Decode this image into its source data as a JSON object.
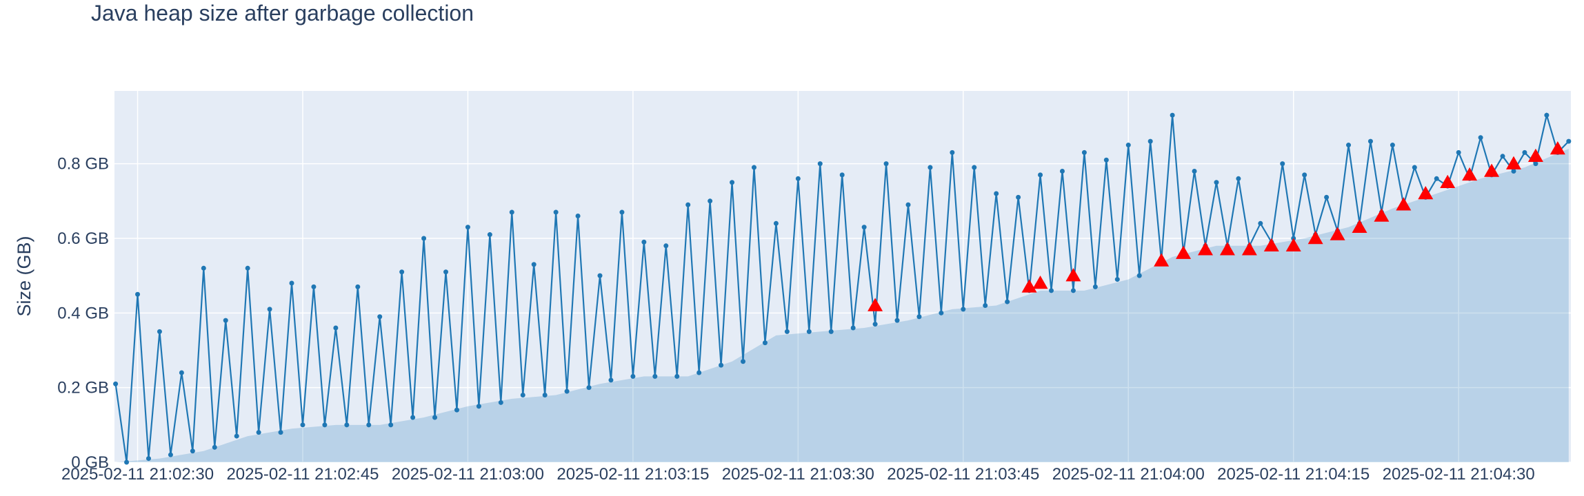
{
  "chart_data": {
    "type": "line",
    "title": "Java heap size after garbage collection",
    "y_label": "Size (GB)",
    "xlim": [
      "2025-02-11 21:02:27.9",
      "2025-02-11 21:04:40.2"
    ],
    "xticks": [
      "2025-02-11 21:02:30",
      "2025-02-11 21:02:45",
      "2025-02-11 21:03:00",
      "2025-02-11 21:03:15",
      "2025-02-11 21:03:30",
      "2025-02-11 21:03:45",
      "2025-02-11 21:04:00",
      "2025-02-11 21:04:15",
      "2025-02-11 21:04:30"
    ],
    "ylim": [
      0,
      0.995
    ],
    "yticks": [
      {
        "value": 0,
        "label": "0 GB"
      },
      {
        "value": 0.2,
        "label": "0.2 GB"
      },
      {
        "value": 0.4,
        "label": "0.4 GB"
      },
      {
        "value": 0.6,
        "label": "0.6 GB"
      },
      {
        "value": 0.8,
        "label": "0.8 GB"
      }
    ],
    "grid": true,
    "series": [
      {
        "kind": "area",
        "color": "#1f77b4",
        "fill": "rgba(31,119,180,0.22)",
        "x": [
          "2025-02-11 21:02:28",
          "2025-02-11 21:02:32",
          "2025-02-11 21:02:36",
          "2025-02-11 21:02:40",
          "2025-02-11 21:02:44",
          "2025-02-11 21:02:48",
          "2025-02-11 21:02:52",
          "2025-02-11 21:02:56",
          "2025-02-11 21:03:00",
          "2025-02-11 21:03:04",
          "2025-02-11 21:03:08",
          "2025-02-11 21:03:12",
          "2025-02-11 21:03:16",
          "2025-02-11 21:03:20",
          "2025-02-11 21:03:24",
          "2025-02-11 21:03:28",
          "2025-02-11 21:03:32",
          "2025-02-11 21:03:36",
          "2025-02-11 21:03:40",
          "2025-02-11 21:03:44",
          "2025-02-11 21:03:48",
          "2025-02-11 21:03:52",
          "2025-02-11 21:03:56",
          "2025-02-11 21:04:00",
          "2025-02-11 21:04:04",
          "2025-02-11 21:04:08",
          "2025-02-11 21:04:12",
          "2025-02-11 21:04:16",
          "2025-02-11 21:04:20",
          "2025-02-11 21:04:24",
          "2025-02-11 21:04:28",
          "2025-02-11 21:04:32",
          "2025-02-11 21:04:36",
          "2025-02-11 21:04:40"
        ],
        "values": [
          0.0,
          0.01,
          0.03,
          0.07,
          0.09,
          0.1,
          0.1,
          0.12,
          0.15,
          0.17,
          0.18,
          0.21,
          0.23,
          0.23,
          0.27,
          0.34,
          0.35,
          0.36,
          0.38,
          0.41,
          0.42,
          0.46,
          0.46,
          0.49,
          0.55,
          0.58,
          0.58,
          0.6,
          0.63,
          0.68,
          0.72,
          0.76,
          0.79,
          0.84
        ]
      },
      {
        "kind": "line",
        "color": "#1f77b4",
        "x": [
          "2025-02-11 21:02:28",
          "2025-02-11 21:02:29",
          "2025-02-11 21:02:30",
          "2025-02-11 21:02:31",
          "2025-02-11 21:02:32",
          "2025-02-11 21:02:33",
          "2025-02-11 21:02:34",
          "2025-02-11 21:02:35",
          "2025-02-11 21:02:36",
          "2025-02-11 21:02:37",
          "2025-02-11 21:02:38",
          "2025-02-11 21:02:39",
          "2025-02-11 21:02:40",
          "2025-02-11 21:02:41",
          "2025-02-11 21:02:42",
          "2025-02-11 21:02:43",
          "2025-02-11 21:02:44",
          "2025-02-11 21:02:45",
          "2025-02-11 21:02:46",
          "2025-02-11 21:02:47",
          "2025-02-11 21:02:48",
          "2025-02-11 21:02:49",
          "2025-02-11 21:02:50",
          "2025-02-11 21:02:51",
          "2025-02-11 21:02:52",
          "2025-02-11 21:02:53",
          "2025-02-11 21:02:54",
          "2025-02-11 21:02:55",
          "2025-02-11 21:02:56",
          "2025-02-11 21:02:57",
          "2025-02-11 21:02:58",
          "2025-02-11 21:02:59",
          "2025-02-11 21:03:00",
          "2025-02-11 21:03:01",
          "2025-02-11 21:03:02",
          "2025-02-11 21:03:03",
          "2025-02-11 21:03:04",
          "2025-02-11 21:03:05",
          "2025-02-11 21:03:06",
          "2025-02-11 21:03:07",
          "2025-02-11 21:03:08",
          "2025-02-11 21:03:09",
          "2025-02-11 21:03:10",
          "2025-02-11 21:03:11",
          "2025-02-11 21:03:12",
          "2025-02-11 21:03:13",
          "2025-02-11 21:03:14",
          "2025-02-11 21:03:15",
          "2025-02-11 21:03:16",
          "2025-02-11 21:03:17",
          "2025-02-11 21:03:18",
          "2025-02-11 21:03:19",
          "2025-02-11 21:03:20",
          "2025-02-11 21:03:21",
          "2025-02-11 21:03:22",
          "2025-02-11 21:03:23",
          "2025-02-11 21:03:24",
          "2025-02-11 21:03:25",
          "2025-02-11 21:03:26",
          "2025-02-11 21:03:27",
          "2025-02-11 21:03:28",
          "2025-02-11 21:03:29",
          "2025-02-11 21:03:30",
          "2025-02-11 21:03:31",
          "2025-02-11 21:03:32",
          "2025-02-11 21:03:33",
          "2025-02-11 21:03:34",
          "2025-02-11 21:03:35",
          "2025-02-11 21:03:36",
          "2025-02-11 21:03:37",
          "2025-02-11 21:03:38",
          "2025-02-11 21:03:39",
          "2025-02-11 21:03:40",
          "2025-02-11 21:03:41",
          "2025-02-11 21:03:42",
          "2025-02-11 21:03:43",
          "2025-02-11 21:03:44",
          "2025-02-11 21:03:45",
          "2025-02-11 21:03:46",
          "2025-02-11 21:03:47",
          "2025-02-11 21:03:48",
          "2025-02-11 21:03:49",
          "2025-02-11 21:03:50",
          "2025-02-11 21:03:51",
          "2025-02-11 21:03:52",
          "2025-02-11 21:03:53",
          "2025-02-11 21:03:54",
          "2025-02-11 21:03:55",
          "2025-02-11 21:03:56",
          "2025-02-11 21:03:57",
          "2025-02-11 21:03:58",
          "2025-02-11 21:03:59",
          "2025-02-11 21:04:00",
          "2025-02-11 21:04:01",
          "2025-02-11 21:04:02",
          "2025-02-11 21:04:03",
          "2025-02-11 21:04:04",
          "2025-02-11 21:04:05",
          "2025-02-11 21:04:06",
          "2025-02-11 21:04:07",
          "2025-02-11 21:04:08",
          "2025-02-11 21:04:09",
          "2025-02-11 21:04:10",
          "2025-02-11 21:04:11",
          "2025-02-11 21:04:12",
          "2025-02-11 21:04:13",
          "2025-02-11 21:04:14",
          "2025-02-11 21:04:15",
          "2025-02-11 21:04:16",
          "2025-02-11 21:04:17",
          "2025-02-11 21:04:18",
          "2025-02-11 21:04:19",
          "2025-02-11 21:04:20",
          "2025-02-11 21:04:21",
          "2025-02-11 21:04:22",
          "2025-02-11 21:04:23",
          "2025-02-11 21:04:24",
          "2025-02-11 21:04:25",
          "2025-02-11 21:04:26",
          "2025-02-11 21:04:27",
          "2025-02-11 21:04:28",
          "2025-02-11 21:04:29",
          "2025-02-11 21:04:30",
          "2025-02-11 21:04:31",
          "2025-02-11 21:04:32",
          "2025-02-11 21:04:33",
          "2025-02-11 21:04:34",
          "2025-02-11 21:04:35",
          "2025-02-11 21:04:36",
          "2025-02-11 21:04:37",
          "2025-02-11 21:04:38",
          "2025-02-11 21:04:39",
          "2025-02-11 21:04:40"
        ],
        "values": [
          0.21,
          0.0,
          0.45,
          0.01,
          0.35,
          0.02,
          0.24,
          0.03,
          0.52,
          0.04,
          0.38,
          0.07,
          0.52,
          0.08,
          0.41,
          0.08,
          0.48,
          0.1,
          0.47,
          0.1,
          0.36,
          0.1,
          0.47,
          0.1,
          0.39,
          0.1,
          0.51,
          0.12,
          0.6,
          0.12,
          0.51,
          0.14,
          0.63,
          0.15,
          0.61,
          0.16,
          0.67,
          0.18,
          0.53,
          0.18,
          0.67,
          0.19,
          0.66,
          0.2,
          0.5,
          0.22,
          0.67,
          0.23,
          0.59,
          0.23,
          0.58,
          0.23,
          0.69,
          0.24,
          0.7,
          0.26,
          0.75,
          0.27,
          0.79,
          0.32,
          0.64,
          0.35,
          0.76,
          0.35,
          0.8,
          0.35,
          0.77,
          0.36,
          0.63,
          0.37,
          0.8,
          0.38,
          0.69,
          0.39,
          0.79,
          0.4,
          0.83,
          0.41,
          0.79,
          0.42,
          0.72,
          0.43,
          0.71,
          0.46,
          0.77,
          0.46,
          0.78,
          0.46,
          0.83,
          0.47,
          0.81,
          0.49,
          0.85,
          0.5,
          0.86,
          0.54,
          0.93,
          0.56,
          0.78,
          0.58,
          0.75,
          0.58,
          0.76,
          0.58,
          0.64,
          0.59,
          0.8,
          0.6,
          0.77,
          0.61,
          0.71,
          0.62,
          0.85,
          0.64,
          0.86,
          0.67,
          0.85,
          0.69,
          0.79,
          0.71,
          0.76,
          0.74,
          0.83,
          0.76,
          0.87,
          0.77,
          0.82,
          0.78,
          0.83,
          0.8,
          0.93,
          0.83,
          0.86
        ]
      },
      {
        "kind": "markers",
        "marker": "triangle-up",
        "color": "#ff0000",
        "x": [
          "2025-02-11 21:03:37",
          "2025-02-11 21:03:51",
          "2025-02-11 21:03:52",
          "2025-02-11 21:03:55",
          "2025-02-11 21:04:03",
          "2025-02-11 21:04:05",
          "2025-02-11 21:04:07",
          "2025-02-11 21:04:09",
          "2025-02-11 21:04:11",
          "2025-02-11 21:04:13",
          "2025-02-11 21:04:15",
          "2025-02-11 21:04:17",
          "2025-02-11 21:04:19",
          "2025-02-11 21:04:21",
          "2025-02-11 21:04:23",
          "2025-02-11 21:04:25",
          "2025-02-11 21:04:27",
          "2025-02-11 21:04:29",
          "2025-02-11 21:04:31",
          "2025-02-11 21:04:33",
          "2025-02-11 21:04:35",
          "2025-02-11 21:04:37",
          "2025-02-11 21:04:39"
        ],
        "values": [
          0.42,
          0.47,
          0.48,
          0.5,
          0.54,
          0.56,
          0.57,
          0.57,
          0.57,
          0.58,
          0.58,
          0.6,
          0.61,
          0.63,
          0.66,
          0.69,
          0.72,
          0.75,
          0.77,
          0.78,
          0.8,
          0.82,
          0.84
        ]
      }
    ]
  }
}
